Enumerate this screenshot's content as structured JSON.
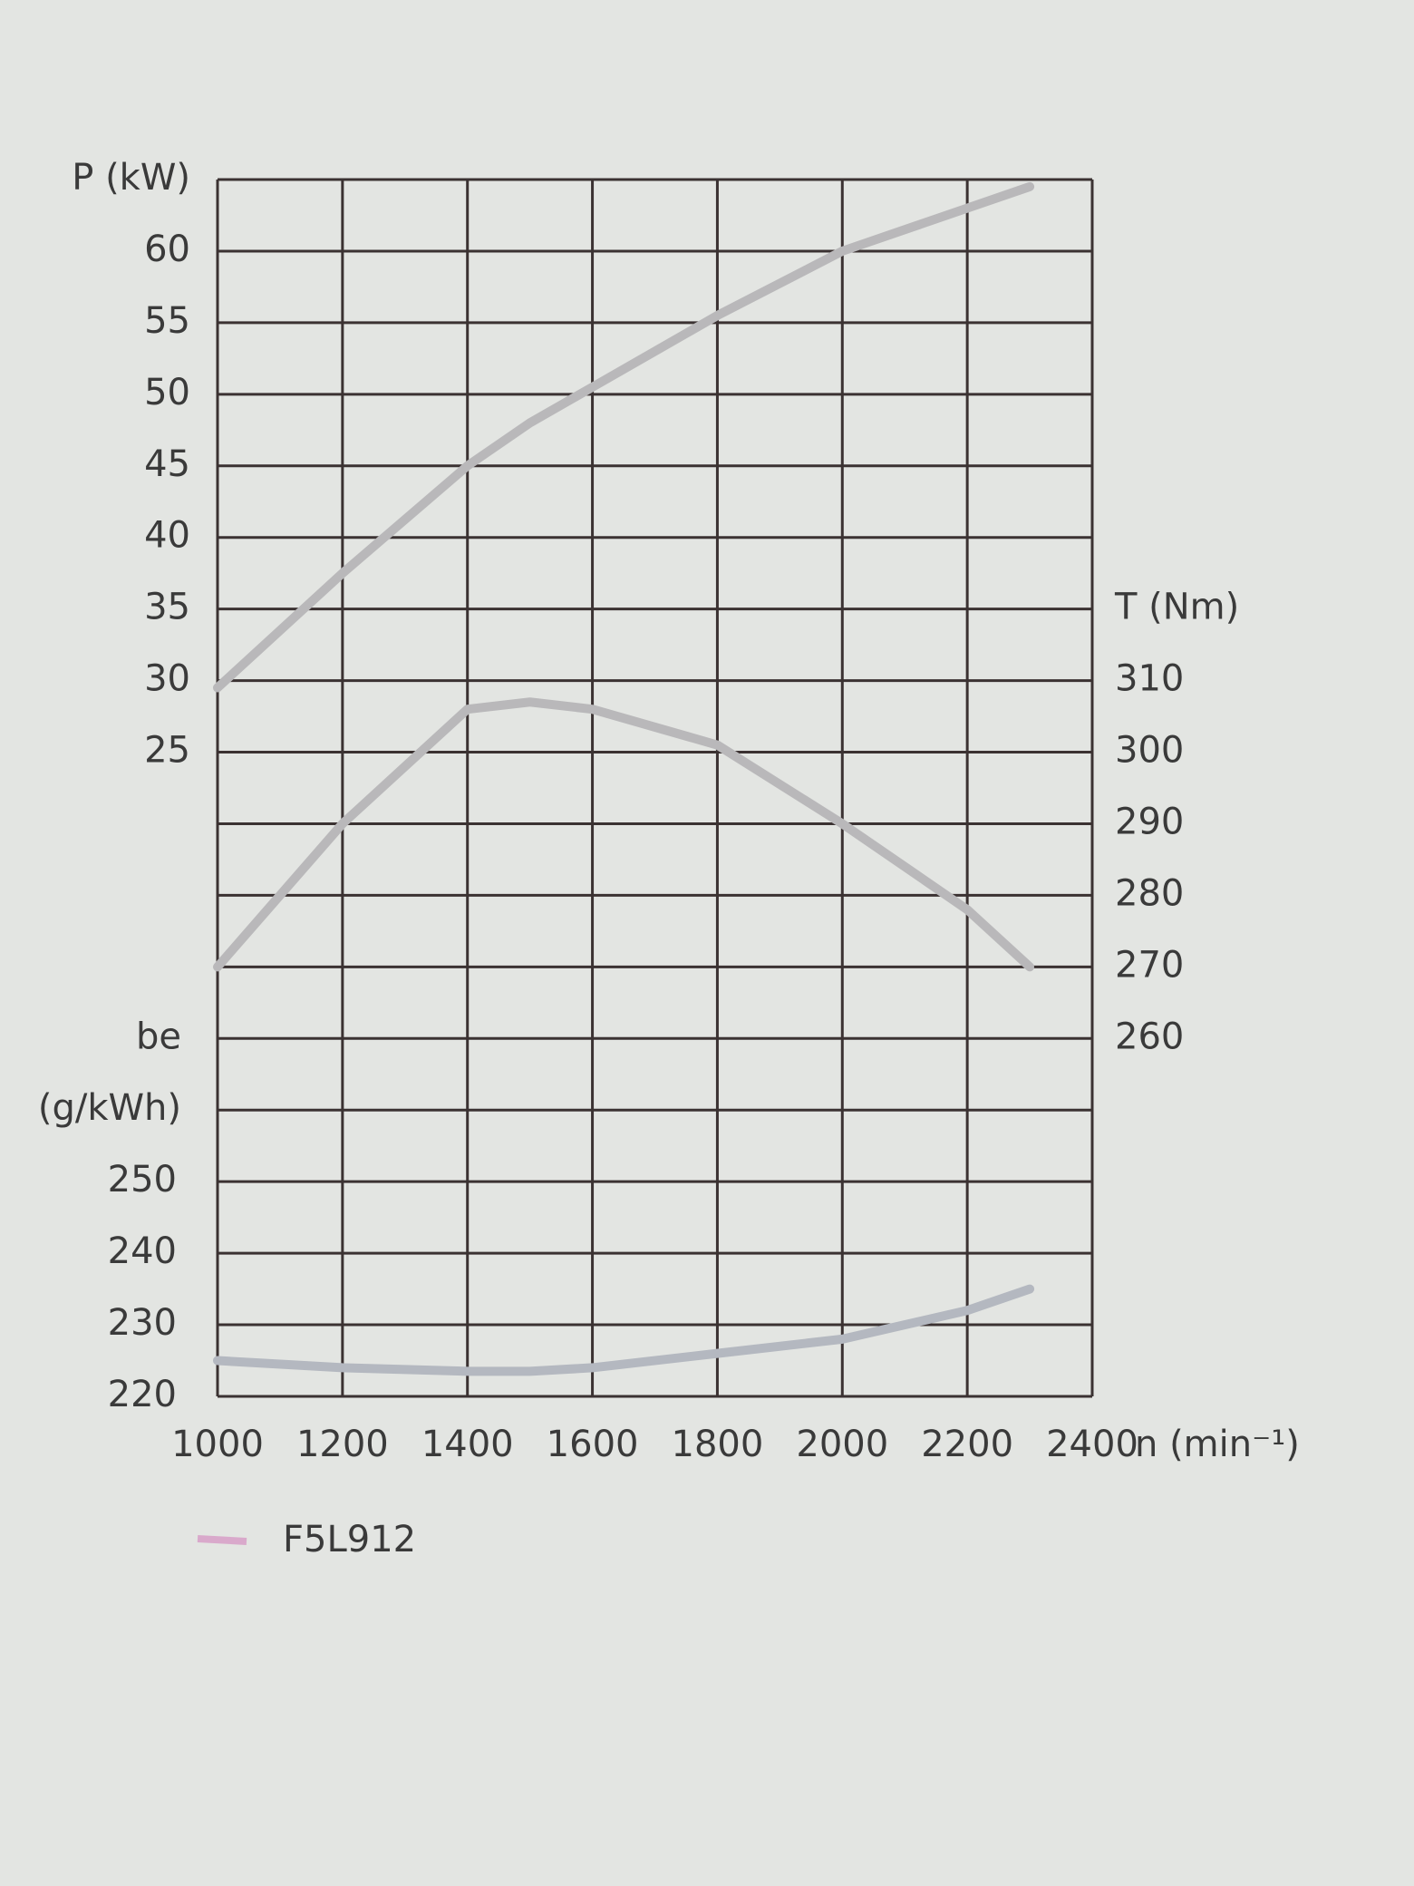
{
  "chart_data": {
    "type": "line",
    "ylabel": "P (kW)",
    "y2label": "T (Nm)",
    "y3label": [
      "be",
      "(g/kWh)"
    ],
    "xlabel": "n (min⁻¹)",
    "x": [
      1000,
      1200,
      1400,
      1500,
      1600,
      1800,
      2000,
      2200,
      2300
    ],
    "xlim": [
      1000,
      2400
    ],
    "xticks": [
      1000,
      1200,
      1400,
      1600,
      1800,
      2000,
      2200,
      2400
    ],
    "ylim": [
      -20,
      65
    ],
    "yticks": [
      25,
      30,
      35,
      40,
      45,
      50,
      55,
      60
    ],
    "y2lim": [
      210,
      380
    ],
    "y2ticks": [
      260,
      270,
      280,
      290,
      300,
      310
    ],
    "y3lim": [
      220,
      390
    ],
    "y3ticks": [
      220,
      230,
      240,
      250
    ],
    "grid": true,
    "series": [
      {
        "axis": "y",
        "color": "#b9b8ba",
        "values": [
          29.5,
          37.5,
          45,
          48,
          50.5,
          55.5,
          60,
          63,
          64.5
        ]
      },
      {
        "axis": "y2",
        "color": "#b9b8ba",
        "values": [
          270,
          290,
          306,
          307,
          306,
          301,
          290,
          278,
          270
        ]
      },
      {
        "axis": "y3",
        "color": "#b4b8c0",
        "values": [
          225,
          224,
          223.5,
          223.5,
          224,
          226,
          228,
          232,
          235
        ]
      }
    ],
    "legend": {
      "label": "F5L912",
      "color": "#d9a9cb"
    }
  }
}
